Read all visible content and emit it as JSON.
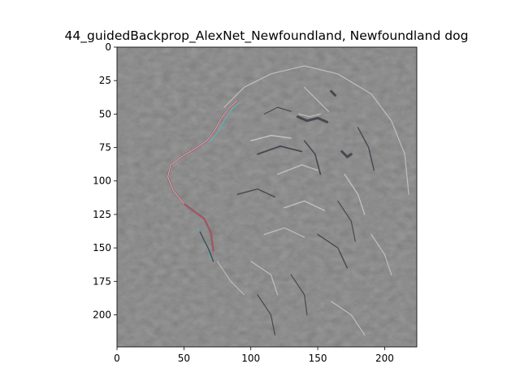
{
  "chart_data": {
    "type": "heatmap",
    "title": "44_guidedBackprop_AlexNet_Newfoundland, Newfoundland dog",
    "subject": "guided backpropagation saliency map of a Newfoundland dog head in profile (facing left); grey background with colored edge gradients",
    "image_size": [
      224,
      224
    ],
    "xlim": [
      0,
      224
    ],
    "ylim": [
      224,
      0
    ],
    "xticks": [
      0,
      50,
      100,
      150,
      200
    ],
    "yticks": [
      0,
      25,
      50,
      75,
      100,
      125,
      150,
      175,
      200
    ],
    "xlabel": "",
    "ylabel": "",
    "grid": false,
    "colors": {
      "background_gray": "#7f7f7f",
      "edge_dark": "#3c3c46",
      "edge_light": "#c8c8c8",
      "edge_red": "#a05060",
      "edge_cyan": "#60b4b4"
    }
  }
}
